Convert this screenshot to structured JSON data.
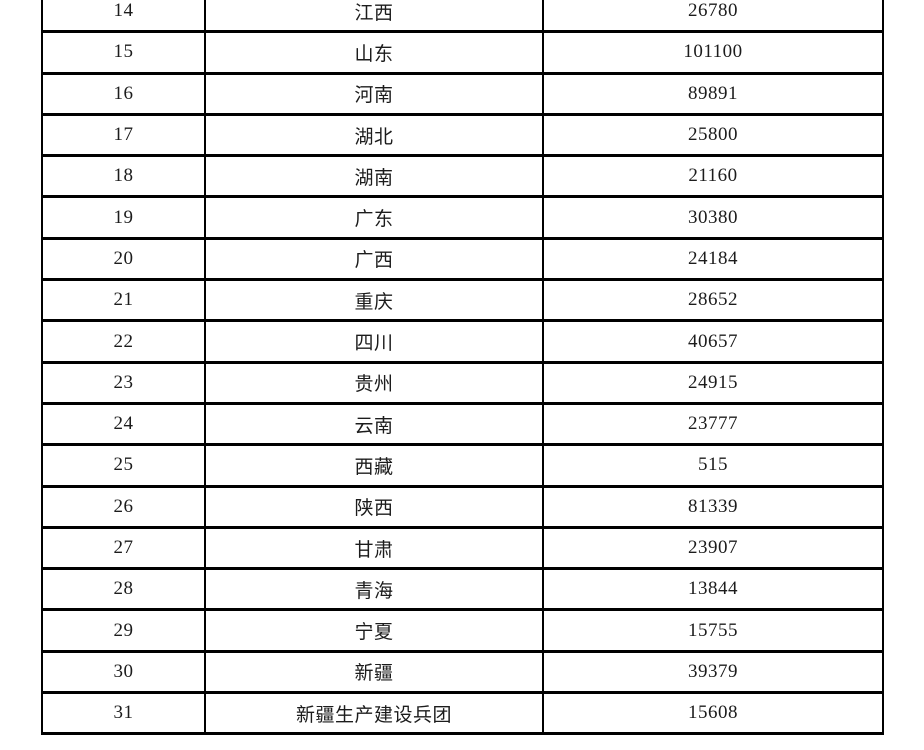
{
  "colors": {
    "background": "#ffffff",
    "border": "#000000",
    "text": "#1c1c1c"
  },
  "table": {
    "rows": [
      {
        "index": "14",
        "region": "江西",
        "value": "26780"
      },
      {
        "index": "15",
        "region": "山东",
        "value": "101100"
      },
      {
        "index": "16",
        "region": "河南",
        "value": "89891"
      },
      {
        "index": "17",
        "region": "湖北",
        "value": "25800"
      },
      {
        "index": "18",
        "region": "湖南",
        "value": "21160"
      },
      {
        "index": "19",
        "region": "广东",
        "value": "30380"
      },
      {
        "index": "20",
        "region": "广西",
        "value": "24184"
      },
      {
        "index": "21",
        "region": "重庆",
        "value": "28652"
      },
      {
        "index": "22",
        "region": "四川",
        "value": "40657"
      },
      {
        "index": "23",
        "region": "贵州",
        "value": "24915"
      },
      {
        "index": "24",
        "region": "云南",
        "value": "23777"
      },
      {
        "index": "25",
        "region": "西藏",
        "value": "515"
      },
      {
        "index": "26",
        "region": "陕西",
        "value": "81339"
      },
      {
        "index": "27",
        "region": "甘肃",
        "value": "23907"
      },
      {
        "index": "28",
        "region": "青海",
        "value": "13844"
      },
      {
        "index": "29",
        "region": "宁夏",
        "value": "15755"
      },
      {
        "index": "30",
        "region": "新疆",
        "value": "39379"
      },
      {
        "index": "31",
        "region": "新疆生产建设兵团",
        "value": "15608"
      }
    ]
  }
}
